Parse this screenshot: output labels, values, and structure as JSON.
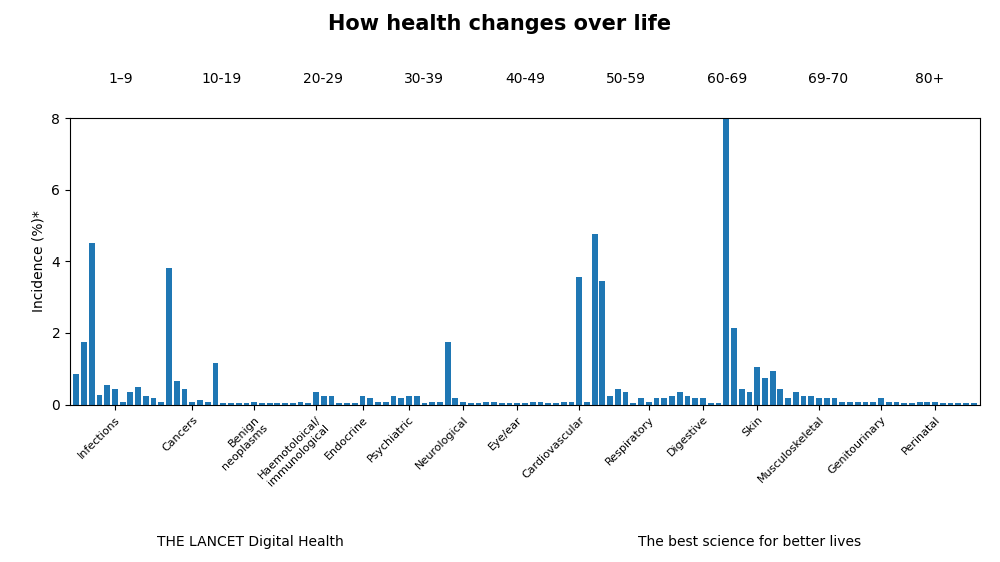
{
  "chart_data": {
    "type": "bar",
    "title": "How health changes over life",
    "ylabel": "Incidence (%)*",
    "ylim": [
      0,
      8
    ],
    "yticks": [
      0,
      2,
      4,
      6,
      8
    ],
    "annotations": [
      [
        "1–9",
        "10-19",
        "20-29",
        "30-39",
        "40-49",
        "50-59",
        "60-69",
        "69-70",
        "80+"
      ],
      [
        "THE LANCET Digital Health",
        "The best science for better lives"
      ]
    ],
    "categories": [
      null,
      null,
      null,
      null,
      null,
      "Infections",
      null,
      null,
      null,
      null,
      null,
      null,
      null,
      null,
      null,
      "Cancers",
      null,
      null,
      null,
      null,
      null,
      null,
      null,
      "Benign\nneoplasms",
      null,
      null,
      null,
      null,
      null,
      null,
      null,
      "Haemotoloical/\nimmunological",
      null,
      null,
      null,
      null,
      null,
      "Endocrine",
      null,
      null,
      null,
      null,
      null,
      "Psychiatric",
      null,
      null,
      null,
      null,
      null,
      null,
      "Neurological",
      null,
      null,
      null,
      null,
      null,
      null,
      "Eye/ear",
      null,
      null,
      null,
      null,
      null,
      null,
      null,
      "Cardiovascular",
      null,
      null,
      null,
      null,
      null,
      null,
      null,
      null,
      "Respiratory",
      null,
      null,
      null,
      null,
      null,
      null,
      "Digestive",
      null,
      null,
      null,
      null,
      null,
      null,
      "Skin",
      null,
      null,
      null,
      null,
      null,
      null,
      null,
      "Musculoskeletal",
      null,
      null,
      null,
      null,
      null,
      null,
      null,
      "Genitourinary",
      null,
      null,
      null,
      null,
      null,
      null,
      "Perinatal",
      null,
      null,
      null,
      null,
      null
    ],
    "values": [
      0.85,
      1.75,
      4.5,
      0.28,
      0.55,
      0.45,
      0.08,
      0.35,
      0.5,
      0.25,
      0.18,
      0.08,
      3.8,
      0.65,
      0.45,
      0.08,
      0.12,
      0.08,
      1.15,
      0.05,
      0.05,
      0.05,
      0.04,
      0.08,
      0.04,
      0.04,
      0.04,
      0.04,
      0.04,
      0.08,
      0.04,
      0.35,
      0.25,
      0.25,
      0.04,
      0.04,
      0.04,
      0.25,
      0.18,
      0.08,
      0.08,
      0.25,
      0.18,
      0.25,
      0.25,
      0.04,
      0.08,
      0.08,
      1.75,
      0.18,
      0.08,
      0.04,
      0.04,
      0.08,
      0.08,
      0.04,
      0.04,
      0.04,
      0.04,
      0.08,
      0.08,
      0.04,
      0.04,
      0.08,
      0.08,
      3.55,
      0.08,
      4.75,
      3.45,
      0.25,
      0.45,
      0.35,
      0.04,
      0.18,
      0.08,
      0.18,
      0.18,
      0.25,
      0.35,
      0.25,
      0.18,
      0.18,
      0.04,
      0.04,
      8.0,
      2.15,
      0.45,
      0.35,
      1.05,
      0.75,
      0.95,
      0.45,
      0.18,
      0.35,
      0.25,
      0.25,
      0.18,
      0.18,
      0.18,
      0.08,
      0.08,
      0.08,
      0.08,
      0.08,
      0.18,
      0.08,
      0.08,
      0.04,
      0.04,
      0.08,
      0.08,
      0.08,
      0.04,
      0.04,
      0.04,
      0.04,
      0.04
    ]
  }
}
